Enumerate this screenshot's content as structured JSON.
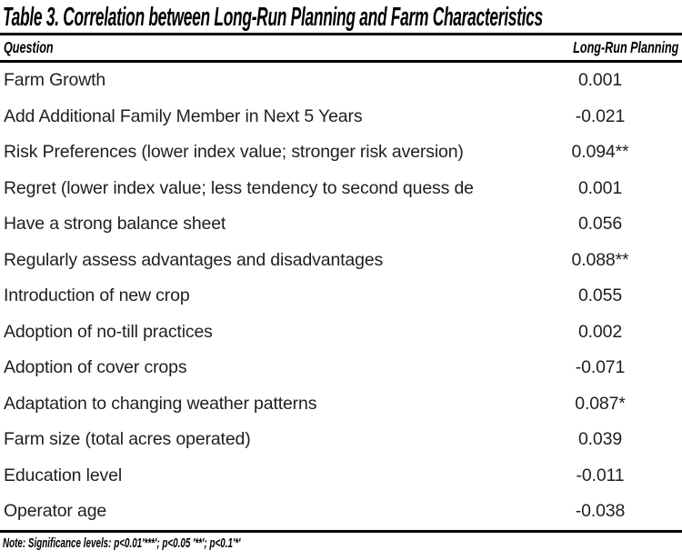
{
  "table": {
    "title": "Table 3. Correlation between Long-Run Planning and Farm Characteristics",
    "columns": {
      "question": "Question",
      "value": "Long-Run Planning"
    },
    "rows": [
      {
        "question": "Farm Growth",
        "value": "0.001"
      },
      {
        "question": "Add Additional Family Member in Next 5 Years",
        "value": "-0.021"
      },
      {
        "question": "Risk Preferences (lower index value; stronger risk aversion)",
        "value": "0.094**"
      },
      {
        "question": "Regret (lower index value; less tendency to second quess de",
        "value": "0.001"
      },
      {
        "question": "Have a strong balance sheet",
        "value": "0.056"
      },
      {
        "question": "Regularly assess advantages and disadvantages",
        "value": "0.088**"
      },
      {
        "question": "Introduction of new crop",
        "value": "0.055"
      },
      {
        "question": "Adoption of no-till practices",
        "value": "0.002"
      },
      {
        "question": "Adoption of cover crops",
        "value": "-0.071"
      },
      {
        "question": "Adaptation to changing weather patterns",
        "value": "0.087*"
      },
      {
        "question": "Farm size (total acres operated)",
        "value": "0.039"
      },
      {
        "question": "Education level",
        "value": "-0.011"
      },
      {
        "question": "Operator age",
        "value": "-0.038"
      }
    ],
    "note": "Note: Significance levels: p<0.01'***'; p<0.05 '**'; p<0.1'*'"
  },
  "colors": {
    "background": "#ffffff",
    "heading_text": "#000000",
    "body_text": "#1f1f1f",
    "rule": "#000000"
  }
}
